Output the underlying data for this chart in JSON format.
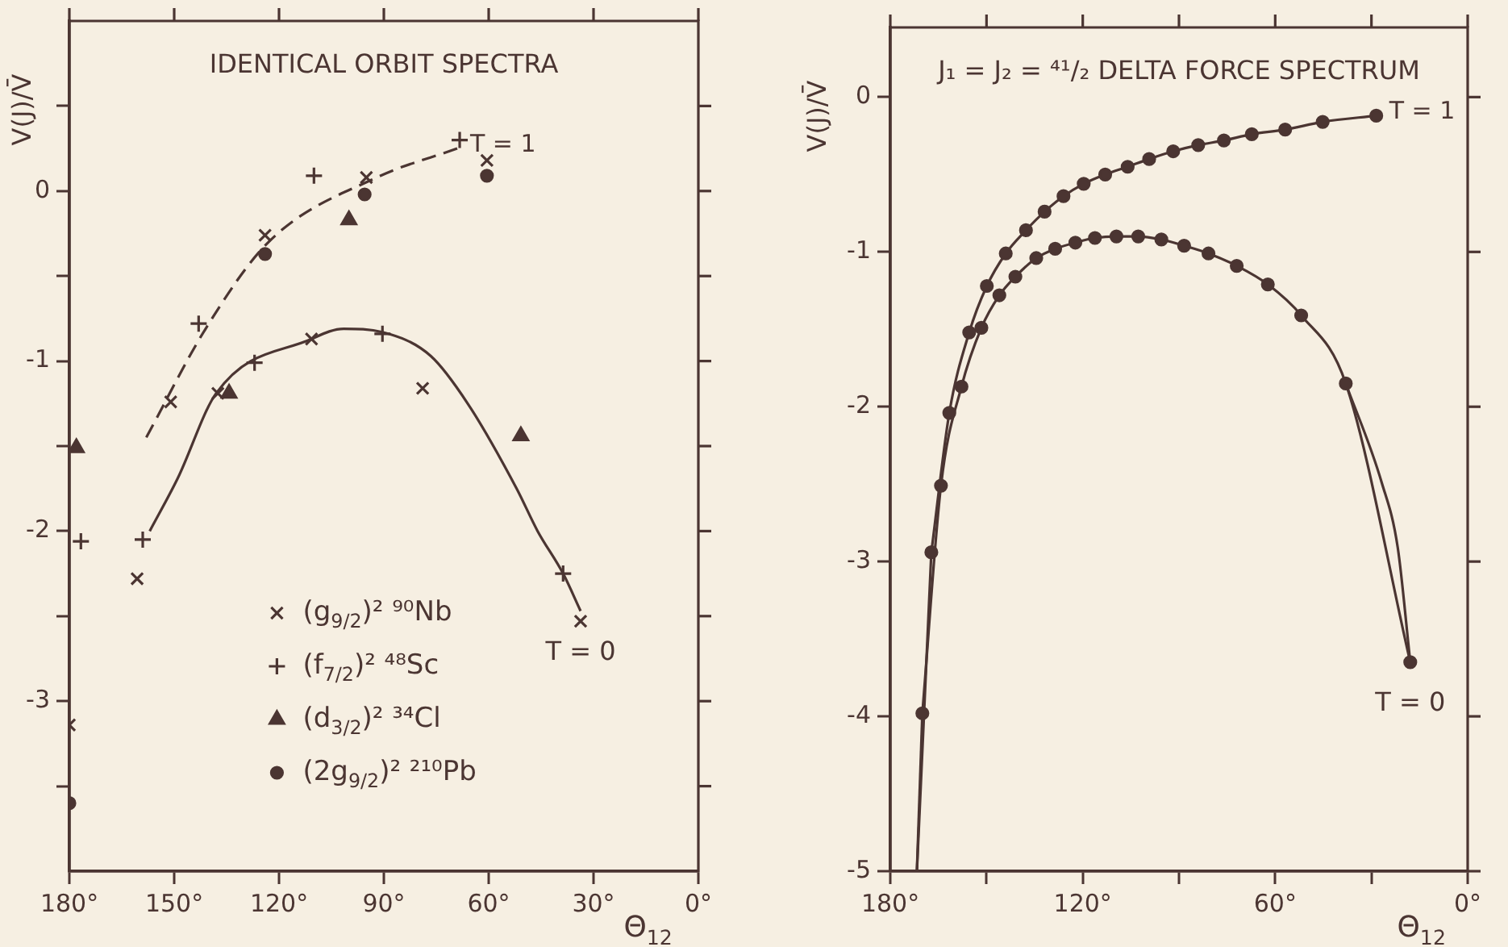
{
  "chart_data": [
    {
      "type": "scatter",
      "title": "IDENTICAL ORBIT SPECTRA",
      "xlabel": "Θ$_{12}$",
      "ylabel": "V(J)/V̄",
      "xlim": [
        180,
        0
      ],
      "ylim": [
        -4,
        1
      ],
      "xticks": [
        {
          "value": 180,
          "label": "180°"
        },
        {
          "value": 150,
          "label": "150°"
        },
        {
          "value": 120,
          "label": "120°"
        },
        {
          "value": 90,
          "label": "90°"
        },
        {
          "value": 60,
          "label": "60°"
        },
        {
          "value": 30,
          "label": "30°"
        },
        {
          "value": 0,
          "label": "0°"
        }
      ],
      "yticks": [
        {
          "value": -3.5,
          "label": null
        },
        -3,
        {
          "value": -2.5,
          "label": null
        },
        -2,
        {
          "value": -1.5,
          "label": null
        },
        -1,
        {
          "value": -0.5,
          "label": null
        },
        0,
        {
          "value": 0.5,
          "label": null
        }
      ],
      "legend": "bottom",
      "series": [
        {
          "name": "(g$_{9/2}$)² ⁹⁰Nb",
          "marker": "x",
          "color": "#4b3532",
          "x": [
            60.5,
            95,
            124,
            151,
            137.5,
            110.7,
            78.9,
            160.6,
            33.7,
            180
          ],
          "values": [
            0.18,
            0.08,
            -0.26,
            -1.24,
            -1.19,
            -0.87,
            -1.16,
            -2.28,
            -2.53,
            -3.14
          ]
        },
        {
          "name": "(f$_{7/2}$)² ⁴⁸Sc",
          "marker": "cross",
          "color": "#4b3532",
          "x": [
            68.3,
            110,
            143,
            127,
            90.4,
            176.7,
            159,
            38.7
          ],
          "values": [
            0.3,
            0.09,
            -0.78,
            -1.01,
            -0.84,
            -2.06,
            -2.05,
            -2.25
          ]
        },
        {
          "name": "(d$_{3/2}$)² ³⁴Cl",
          "marker": "triangle",
          "color": "#4b3532",
          "x": [
            100,
            178,
            134.3,
            50.8
          ],
          "values": [
            -0.17,
            -1.51,
            -1.19,
            -1.44
          ]
        },
        {
          "name": "(2g$_{9/2}$)² ²¹⁰Pb",
          "marker": "circle",
          "color": "#4b3532",
          "x": [
            60.5,
            95.5,
            124,
            180
          ],
          "values": [
            0.09,
            -0.02,
            -0.37,
            -3.6
          ]
        },
        {
          "type": "line",
          "marker": "none",
          "line_style": "dashed",
          "color": "#4b3532",
          "x": [
            69,
            92,
            123,
            141,
            158
          ],
          "values": [
            0.25,
            0.08,
            -0.3,
            -0.81,
            -1.45
          ]
        },
        {
          "type": "line",
          "marker": "none",
          "line_style": "solid",
          "color": "#4b3532",
          "x": [
            33.7,
            38.7,
            46,
            52,
            66,
            76.6,
            90.4,
            101.5,
            110.7,
            138,
            149,
            157
          ],
          "values": [
            -2.47,
            -2.25,
            -2.0,
            -1.75,
            -1.25,
            -0.97,
            -0.83,
            -0.81,
            -0.87,
            -1.19,
            -1.69,
            -2.0
          ]
        }
      ],
      "annotations": [
        {
          "text": "T = 1",
          "x": 69,
          "y": 0.25
        },
        {
          "text": "T = 0",
          "x": 33.7,
          "y": -2.47
        }
      ]
    },
    {
      "type": "line",
      "title": "J₁ = J₂ = ⁴¹/₂ DELTA FORCE SPECTRUM",
      "xlabel": "Θ$_{12}$",
      "ylabel": "V(J)/V̄",
      "xlim": [
        180,
        0
      ],
      "ylim": [
        -5,
        0.45
      ],
      "xticks": [
        {
          "value": 180,
          "label": "180°"
        },
        {
          "value": 150,
          "label": null
        },
        {
          "value": 120,
          "label": "120°"
        },
        {
          "value": 90,
          "label": null
        },
        {
          "value": 60,
          "label": "60°"
        },
        {
          "value": 30,
          "label": null
        },
        {
          "value": 0,
          "label": "0°"
        }
      ],
      "yticks": [
        -5,
        -4,
        -3,
        -2,
        -1,
        0
      ],
      "series": [
        {
          "marker": "circle",
          "color": "#4b3532",
          "x": [
            28.5,
            45.2,
            56.9,
            67.3,
            76,
            84,
            91.8,
            99.3,
            106,
            113,
            119.7,
            126,
            131.9,
            137.7,
            144,
            149.9,
            155.4,
            161.6,
            167.2
          ],
          "values": [
            -0.12,
            -0.16,
            -0.21,
            -0.24,
            -0.28,
            -0.31,
            -0.35,
            -0.4,
            -0.45,
            -0.5,
            -0.56,
            -0.64,
            -0.74,
            -0.86,
            -1.01,
            -1.22,
            -1.52,
            -2.04,
            -2.94
          ]
        },
        {
          "marker": "circle",
          "color": "#4b3532",
          "x": [
            17.9,
            38,
            51.9,
            62.3,
            72,
            80.8,
            88.4,
            95.5,
            102.7,
            109.5,
            116.2,
            122.3,
            128.6,
            134.5,
            141,
            146,
            151.6,
            157.8,
            164.2,
            170
          ],
          "values": [
            -3.65,
            -1.85,
            -1.41,
            -1.21,
            -1.09,
            -1.01,
            -0.96,
            -0.92,
            -0.9,
            -0.9,
            -0.91,
            -0.94,
            -0.98,
            -1.04,
            -1.16,
            -1.28,
            -1.49,
            -1.87,
            -2.51,
            -3.98
          ]
        },
        {
          "marker": "none",
          "color": "#4b3532",
          "x": [
            167.2,
            171.7
          ],
          "values": [
            -2.94,
            -5
          ]
        },
        {
          "marker": "none",
          "color": "#4b3532",
          "x": [
            170,
            171.7
          ],
          "values": [
            -3.98,
            -5
          ]
        },
        {
          "marker": "none",
          "color": "#4b3532",
          "x": [
            17.9,
            21.8,
            26.8,
            38
          ],
          "values": [
            -3.65,
            -2.91,
            -2.49,
            -1.85
          ]
        }
      ],
      "annotations": [
        {
          "text": "T = 1",
          "x": 28.5,
          "y": -0.12
        },
        {
          "text": "T = 0",
          "x": 17.9,
          "y": -3.65
        }
      ]
    }
  ]
}
